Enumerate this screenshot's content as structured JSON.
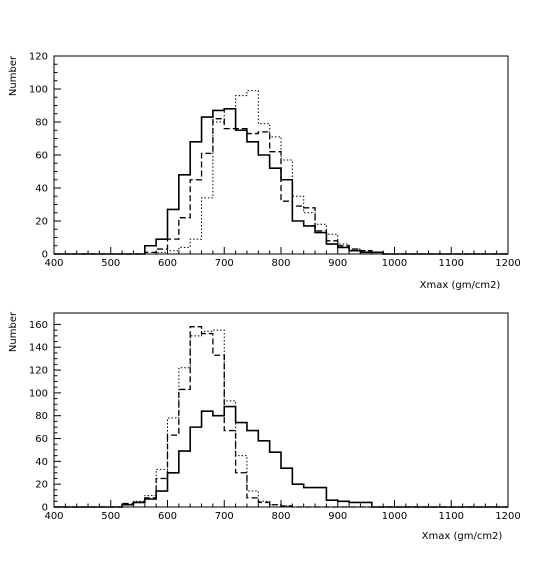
{
  "chart_data": [
    {
      "type": "histogram",
      "xlabel": "Xmax (gm/cm2)",
      "ylabel": "Number",
      "xlim": [
        400,
        1200
      ],
      "ylim": [
        0,
        120
      ],
      "xticks": [
        "400",
        "500",
        "600",
        "700",
        "800",
        "900",
        "1000",
        "1100",
        "1200"
      ],
      "yticks": [
        "0",
        "20",
        "40",
        "60",
        "80",
        "100",
        "120"
      ],
      "bin_edges": [
        560,
        580,
        600,
        620,
        640,
        660,
        680,
        700,
        720,
        740,
        760,
        780,
        800,
        820,
        840,
        860,
        880,
        900,
        920,
        940,
        960,
        980,
        1000
      ],
      "series": [
        {
          "style": "solid",
          "color": "#000000",
          "values": [
            5,
            9,
            27,
            48,
            68,
            83,
            87,
            88,
            75,
            68,
            60,
            52,
            45,
            20,
            17,
            13,
            6,
            4,
            2,
            1,
            1,
            0
          ]
        },
        {
          "style": "dashed",
          "color": "#000000",
          "values": [
            1,
            3,
            9,
            22,
            45,
            61,
            82,
            76,
            76,
            73,
            74,
            62,
            32,
            29,
            28,
            14,
            8,
            5,
            3,
            2,
            1,
            0
          ]
        },
        {
          "style": "dotted",
          "color": "#000000",
          "values": [
            0,
            1,
            2,
            4,
            9,
            34,
            80,
            88,
            96,
            99,
            79,
            71,
            57,
            35,
            25,
            18,
            12,
            6,
            3,
            2,
            1,
            0
          ]
        }
      ]
    },
    {
      "type": "histogram",
      "xlabel": "Xmax (gm/cm2)",
      "ylabel": "Number",
      "xlim": [
        400,
        1200
      ],
      "ylim": [
        0,
        170
      ],
      "xticks": [
        "400",
        "500",
        "600",
        "700",
        "800",
        "900",
        "1000",
        "1100",
        "1200"
      ],
      "yticks": [
        "0",
        "20",
        "40",
        "60",
        "80",
        "100",
        "120",
        "140",
        "160"
      ],
      "bin_edges": [
        520,
        540,
        560,
        580,
        600,
        620,
        640,
        660,
        680,
        700,
        720,
        740,
        760,
        780,
        800,
        820,
        840,
        860,
        880,
        900,
        920,
        940,
        960
      ],
      "series": [
        {
          "style": "solid",
          "color": "#000000",
          "values": [
            2,
            4,
            7,
            14,
            30,
            49,
            70,
            84,
            80,
            88,
            74,
            67,
            58,
            48,
            34,
            20,
            17,
            17,
            6,
            5,
            4,
            4
          ]
        },
        {
          "style": "dashed",
          "color": "#000000",
          "values": [
            3,
            4,
            8,
            25,
            63,
            103,
            158,
            152,
            133,
            67,
            30,
            8,
            4,
            2,
            1,
            0,
            0,
            0,
            0,
            0,
            0,
            0
          ]
        },
        {
          "style": "dotted",
          "color": "#000000",
          "values": [
            2,
            5,
            10,
            33,
            78,
            122,
            150,
            154,
            155,
            93,
            45,
            14,
            5,
            2,
            1,
            0,
            0,
            0,
            0,
            0,
            0,
            0
          ]
        }
      ]
    }
  ]
}
